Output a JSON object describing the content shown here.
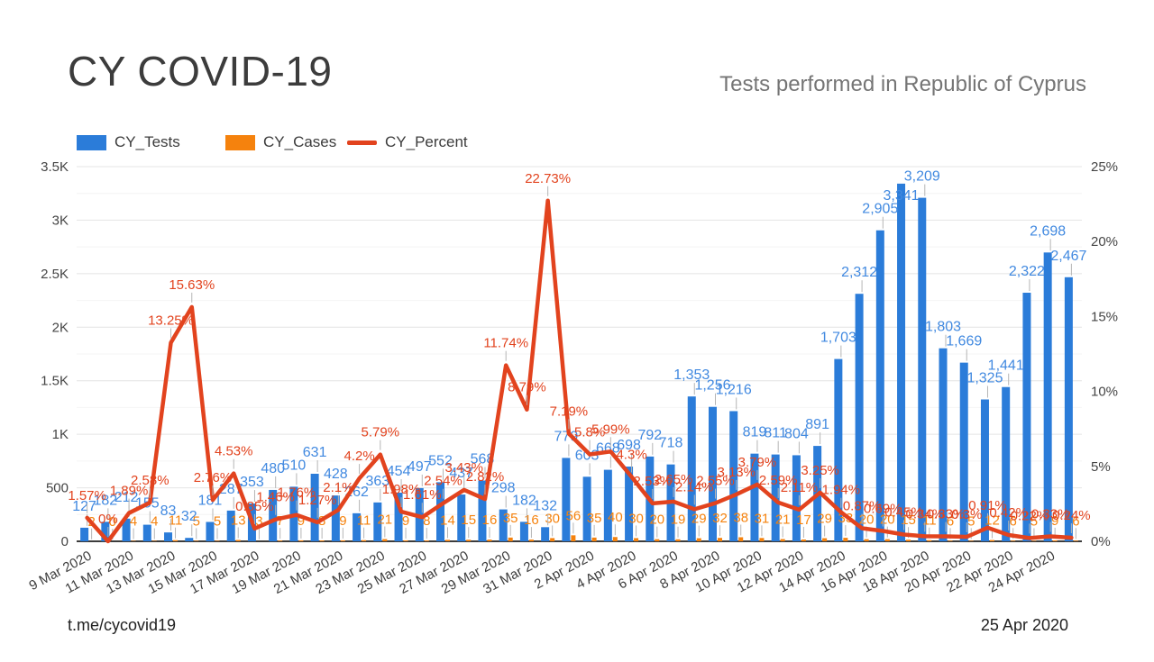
{
  "header": {
    "title": "CY COVID-19",
    "subtitle": "Tests performed in Republic of Cyprus"
  },
  "footer": {
    "left": "t.me/cycovid19",
    "right": "25 Apr 2020"
  },
  "legend": [
    {
      "label": "CY_Tests",
      "shape": "square",
      "color": "#2b7cd9"
    },
    {
      "label": "CY_Cases",
      "shape": "square",
      "color": "#f5820d"
    },
    {
      "label": "CY_Percent",
      "shape": "line",
      "color": "#e2431e"
    }
  ],
  "chart_data": {
    "type": "bar",
    "subtype": "grouped bars with overlaid line, dual y-axes",
    "title": "CY COVID-19",
    "subtitle": "Tests performed in Republic of Cyprus",
    "x": [
      "9 Mar 2020",
      "10 Mar 2020",
      "11 Mar 2020",
      "12 Mar 2020",
      "13 Mar 2020",
      "14 Mar 2020",
      "15 Mar 2020",
      "16 Mar 2020",
      "17 Mar 2020",
      "18 Mar 2020",
      "19 Mar 2020",
      "20 Mar 2020",
      "21 Mar 2020",
      "22 Mar 2020",
      "23 Mar 2020",
      "24 Mar 2020",
      "25 Mar 2020",
      "26 Mar 2020",
      "27 Mar 2020",
      "28 Mar 2020",
      "29 Mar 2020",
      "30 Mar 2020",
      "31 Mar 2020",
      "1 Apr 2020",
      "2 Apr 2020",
      "3 Apr 2020",
      "4 Apr 2020",
      "5 Apr 2020",
      "6 Apr 2020",
      "7 Apr 2020",
      "8 Apr 2020",
      "9 Apr 2020",
      "10 Apr 2020",
      "11 Apr 2020",
      "12 Apr 2020",
      "13 Apr 2020",
      "14 Apr 2020",
      "15 Apr 2020",
      "16 Apr 2020",
      "17 Apr 2020",
      "18 Apr 2020",
      "19 Apr 2020",
      "20 Apr 2020",
      "21 Apr 2020",
      "22 Apr 2020",
      "23 Apr 2020",
      "24 Apr 2020",
      "25 Apr 2020"
    ],
    "x_tick_labels": [
      "9 Mar 2020",
      "11 Mar 2020",
      "13 Mar 2020",
      "15 Mar 2020",
      "17 Mar 2020",
      "19 Mar 2020",
      "21 Mar 2020",
      "23 Mar 2020",
      "25 Mar 2020",
      "27 Mar 2020",
      "29 Mar 2020",
      "31 Mar 2020",
      "2 Apr 2020",
      "4 Apr 2020",
      "6 Apr 2020",
      "8 Apr 2020",
      "10 Apr 2020",
      "12 Apr 2020",
      "14 Apr 2020",
      "16 Apr 2020",
      "18 Apr 2020",
      "20 Apr 2020",
      "22 Apr 2020",
      "24 Apr 2020"
    ],
    "series": [
      {
        "name": "CY_Tests",
        "type": "bar",
        "axis": "left",
        "color": "#2b7cd9",
        "label_color": "#4189e0",
        "values": [
          127,
          182,
          212,
          155,
          83,
          32,
          181,
          287,
          353,
          480,
          510,
          631,
          428,
          262,
          363,
          454,
          497,
          552,
          437,
          568,
          298,
          182,
          132,
          779,
          603,
          668,
          698,
          792,
          718,
          1353,
          1256,
          1216,
          819,
          811,
          804,
          891,
          1703,
          2312,
          2905,
          3341,
          3209,
          1803,
          1669,
          1325,
          1441,
          2322,
          2698,
          2467
        ],
        "labels": [
          "127",
          "182",
          "212",
          "155",
          "83",
          "32",
          "181",
          "287",
          "353",
          "480",
          "510",
          "631",
          "428",
          "262",
          "363",
          "454",
          "497",
          "552",
          "437",
          "568",
          "298",
          "182",
          "132",
          "779",
          "603",
          "668",
          "698",
          "792",
          "718",
          "1,353",
          "1,256",
          "1,216",
          "819",
          "811",
          "804",
          "891",
          "1,703",
          "2,312",
          "2,905",
          "3,341",
          "3,209",
          "1,803",
          "1,669",
          "1,325",
          "1,441",
          "2,322",
          "2,698",
          "2,467"
        ]
      },
      {
        "name": "CY_Cases",
        "type": "bar",
        "axis": "left",
        "color": "#f5820d",
        "label_color": "#f5820d",
        "values": [
          2,
          0,
          4,
          4,
          11,
          5,
          5,
          13,
          3,
          7,
          9,
          8,
          9,
          11,
          21,
          9,
          8,
          14,
          15,
          16,
          35,
          16,
          30,
          56,
          35,
          40,
          30,
          20,
          19,
          29,
          32,
          38,
          31,
          21,
          17,
          29,
          33,
          20,
          20,
          15,
          11,
          6,
          5,
          12,
          6,
          5,
          9,
          6
        ],
        "labels": [
          "2",
          "0",
          "4",
          "4",
          "11",
          "5",
          "5",
          "13",
          "3",
          "7",
          "9",
          "8",
          "9",
          "11",
          "21",
          "9",
          "8",
          "14",
          "15",
          "16",
          "35",
          "16",
          "30",
          "56",
          "35",
          "40",
          "30",
          "20",
          "19",
          "29",
          "32",
          "38",
          "31",
          "21",
          "17",
          "29",
          "33",
          "20",
          "20",
          "15",
          "11",
          "6",
          "5",
          "12",
          "6",
          "5",
          "9",
          "6"
        ]
      },
      {
        "name": "CY_Percent",
        "type": "line",
        "axis": "right",
        "color": "#e2431e",
        "label_color": "#e2431e",
        "values": [
          1.57,
          0,
          1.89,
          2.58,
          13.25,
          15.63,
          2.76,
          4.53,
          0.85,
          1.46,
          1.76,
          1.27,
          2.1,
          4.2,
          5.79,
          1.98,
          1.61,
          2.54,
          3.43,
          2.82,
          11.74,
          8.79,
          22.73,
          7.19,
          5.8,
          5.99,
          4.3,
          2.53,
          2.65,
          2.14,
          2.55,
          3.13,
          3.79,
          2.59,
          2.11,
          3.25,
          1.94,
          0.87,
          0.69,
          0.45,
          0.34,
          0.33,
          0.3,
          0.91,
          0.42,
          0.22,
          0.33,
          0.24
        ],
        "labels": [
          "1.57%",
          "0%",
          "1.89%",
          "2.58%",
          "13.25%",
          "15.63%",
          "2.76%",
          "4.53%",
          "0.85%",
          "1.46%",
          "1.76%",
          "1.27%",
          "2.1%",
          "4.2%",
          "5.79%",
          "1.98%",
          "1.61%",
          "2.54%",
          "3.43%",
          "2.82%",
          "11.74%",
          "8.79%",
          "22.73%",
          "7.19%",
          "5.8%",
          "5.99%",
          "4.3%",
          "2.53%",
          "2.65%",
          "2.14%",
          "2.55%",
          "3.13%",
          "3.79%",
          "2.59%",
          "2.11%",
          "3.25%",
          "1.94%",
          "0.87%",
          "0.69%",
          "0.45%",
          "0.34%",
          "0.33%",
          "0.3%",
          "0.91%",
          "0.42%",
          "0.22%",
          "0.33%",
          "0.24%"
        ]
      }
    ],
    "left_axis": {
      "ticks": [
        "0",
        "500",
        "1K",
        "1.5K",
        "2K",
        "2.5K",
        "3K",
        "3.5K"
      ],
      "min": 0,
      "max": 3500,
      "major_step": 500,
      "minor_step": 250
    },
    "right_axis": {
      "ticks": [
        "0%",
        "5%",
        "10%",
        "15%",
        "20%",
        "25%"
      ],
      "min": 0,
      "max": 25,
      "major_step": 5
    },
    "grid": "on",
    "legend_position": "top-left"
  }
}
